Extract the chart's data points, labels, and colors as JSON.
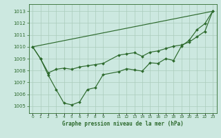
{
  "background_color": "#cce8e0",
  "grid_color": "#aaccbb",
  "line_color": "#2d6a2d",
  "title": "Graphe pression niveau de la mer (hPa)",
  "ylabel_ticks": [
    1005,
    1006,
    1007,
    1008,
    1009,
    1010,
    1011,
    1012,
    1013
  ],
  "ylim": [
    1004.4,
    1013.6
  ],
  "xlim": [
    -0.5,
    23.5
  ],
  "xtick_positions": [
    0,
    1,
    2,
    3,
    4,
    5,
    6,
    7,
    8,
    9,
    11,
    12,
    13,
    14,
    15,
    16,
    17,
    18,
    19,
    20,
    21,
    22,
    23
  ],
  "xtick_labels": [
    "0",
    "1",
    "2",
    "3",
    "4",
    "5",
    "6",
    "7",
    "8",
    "9",
    "11",
    "12",
    "13",
    "14",
    "15",
    "16",
    "17",
    "18",
    "19",
    "20",
    "21",
    "22",
    "23"
  ],
  "line1_x": [
    0,
    23
  ],
  "line1_y": [
    1010.0,
    1013.0
  ],
  "line2_x": [
    0,
    1,
    2,
    3,
    4,
    5,
    6,
    7,
    8,
    9,
    11,
    12,
    13,
    14,
    15,
    16,
    17,
    18,
    19,
    20,
    21,
    22,
    23
  ],
  "line2_y": [
    1010.0,
    1009.0,
    1007.8,
    1008.1,
    1008.2,
    1008.1,
    1008.3,
    1008.4,
    1008.5,
    1008.6,
    1009.3,
    1009.4,
    1009.5,
    1009.2,
    1009.55,
    1009.65,
    1009.85,
    1010.05,
    1010.15,
    1010.4,
    1010.85,
    1011.3,
    1013.0
  ],
  "line3_x": [
    0,
    1,
    2,
    3,
    4,
    5,
    6,
    7,
    8,
    9,
    11,
    12,
    13,
    14,
    15,
    16,
    17,
    18,
    19,
    20,
    21,
    22,
    23
  ],
  "line3_y": [
    1010.0,
    1009.0,
    1007.6,
    1006.4,
    1005.25,
    1005.1,
    1005.35,
    1006.4,
    1006.55,
    1007.65,
    1007.9,
    1008.15,
    1008.05,
    1007.95,
    1008.65,
    1008.6,
    1009.0,
    1008.85,
    1010.05,
    1010.55,
    1011.45,
    1011.95,
    1013.0
  ]
}
